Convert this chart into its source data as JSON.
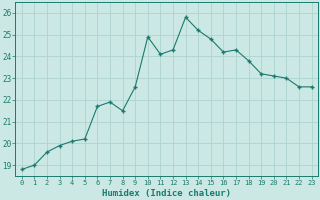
{
  "x": [
    0,
    1,
    2,
    3,
    4,
    5,
    6,
    7,
    8,
    9,
    10,
    11,
    12,
    13,
    14,
    15,
    16,
    17,
    18,
    19,
    20,
    21,
    22,
    23
  ],
  "y": [
    18.8,
    19.0,
    19.6,
    19.9,
    20.1,
    20.2,
    21.7,
    21.9,
    21.5,
    22.6,
    24.9,
    24.1,
    24.3,
    25.8,
    25.2,
    24.8,
    24.2,
    24.3,
    23.8,
    23.2,
    23.1,
    23.0,
    22.6,
    22.6
  ],
  "line_color": "#1a7a6e",
  "marker_color": "#1a7a6e",
  "bg_color": "#cce8e4",
  "grid_color": "#aed4cf",
  "axis_color": "#1a7a6e",
  "tick_color": "#1a7a6e",
  "xlabel": "Humidex (Indice chaleur)",
  "ylim": [
    18.5,
    26.5
  ],
  "xlim": [
    -0.5,
    23.5
  ],
  "yticks": [
    19,
    20,
    21,
    22,
    23,
    24,
    25,
    26
  ],
  "xticks": [
    0,
    1,
    2,
    3,
    4,
    5,
    6,
    7,
    8,
    9,
    10,
    11,
    12,
    13,
    14,
    15,
    16,
    17,
    18,
    19,
    20,
    21,
    22,
    23
  ],
  "xtick_labels": [
    "0",
    "1",
    "2",
    "3",
    "4",
    "5",
    "6",
    "7",
    "8",
    "9",
    "10",
    "11",
    "12",
    "13",
    "14",
    "15",
    "16",
    "17",
    "18",
    "19",
    "20",
    "21",
    "22",
    "23"
  ]
}
